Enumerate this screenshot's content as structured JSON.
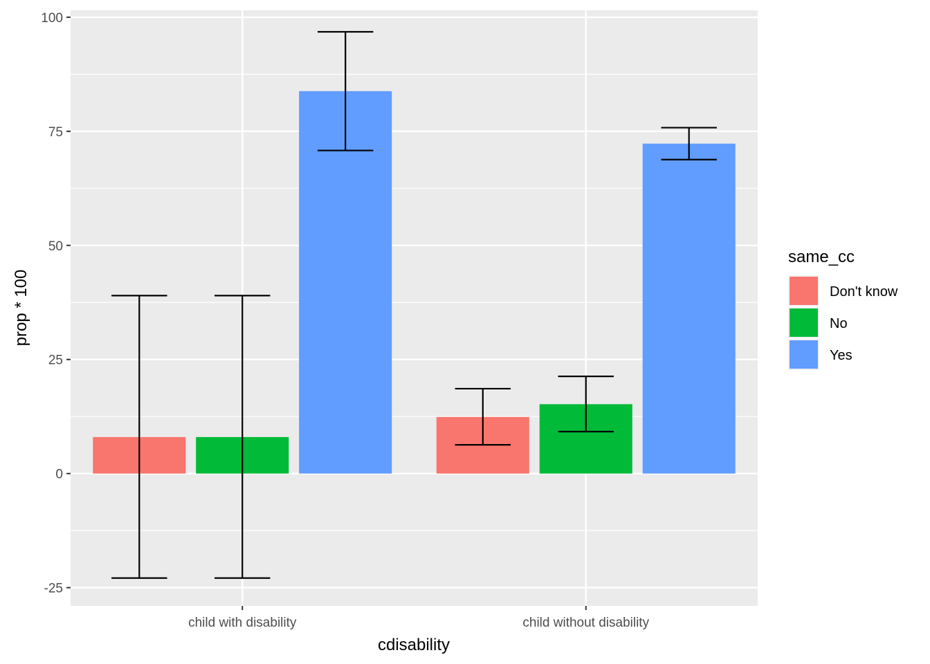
{
  "chart_data": {
    "type": "bar",
    "xlabel": "cdisability",
    "ylabel": "prop * 100",
    "categories": [
      "child with disability",
      "child without disability"
    ],
    "ylim": [
      -29,
      101.5
    ],
    "yticks": [
      -25,
      0,
      25,
      50,
      75,
      100
    ],
    "grid": true,
    "legend": {
      "title": "same_cc",
      "position": "right",
      "entries": [
        "Don't know",
        "No",
        "Yes"
      ]
    },
    "series": [
      {
        "name": "Don't know",
        "color": "#F8766D",
        "values": [
          8.0,
          12.4
        ],
        "lower": [
          -22.9,
          6.3
        ],
        "upper": [
          39.0,
          18.6
        ]
      },
      {
        "name": "No",
        "color": "#00BA38",
        "values": [
          8.0,
          15.2
        ],
        "lower": [
          -22.9,
          9.2
        ],
        "upper": [
          39.0,
          21.3
        ]
      },
      {
        "name": "Yes",
        "color": "#619CFF",
        "values": [
          83.8,
          72.3
        ],
        "lower": [
          70.8,
          68.8
        ],
        "upper": [
          96.8,
          75.8
        ]
      }
    ]
  }
}
